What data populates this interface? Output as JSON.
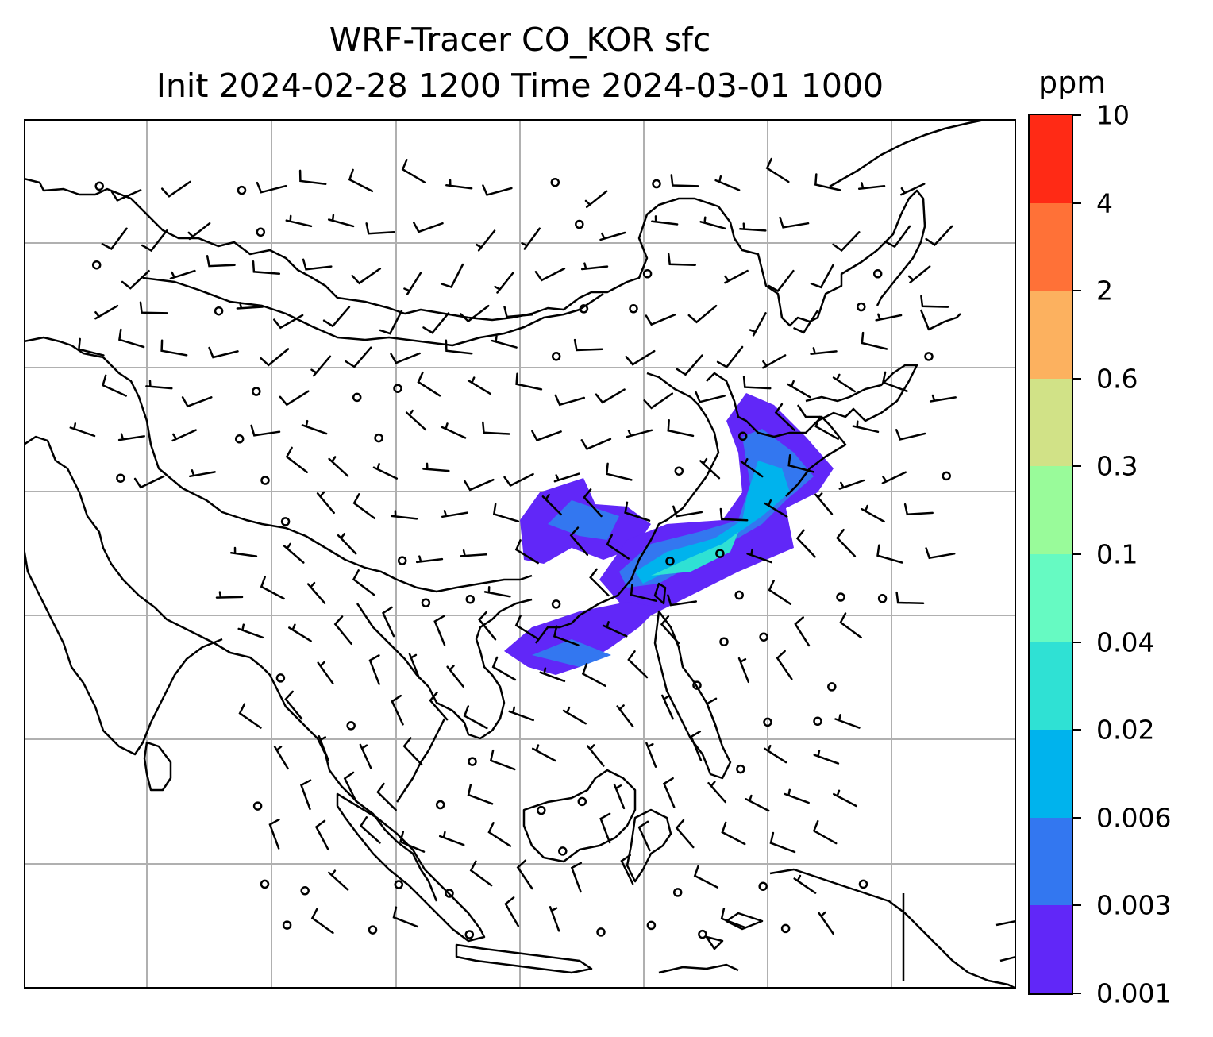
{
  "title": {
    "line1": "WRF-Tracer CO_KOR sfc",
    "line2": "Init 2024-02-28 1200 Time 2024-03-01 1000"
  },
  "colorbar": {
    "units": "ppm",
    "levels": [
      "0.001",
      "0.003",
      "0.006",
      "0.02",
      "0.04",
      "0.1",
      "0.3",
      "0.6",
      "2",
      "4",
      "10"
    ],
    "colors": [
      "#6127f8",
      "#3377f0",
      "#00b3ed",
      "#2fe1d4",
      "#66fac2",
      "#99fb9a",
      "#d1e287",
      "#fcb15f",
      "#ff7137",
      "#ff2a15"
    ]
  },
  "map": {
    "fields": [
      "CO_KOR tracer concentration",
      "surface wind barbs"
    ],
    "gridlines": true,
    "coastline_color": "#000000"
  }
}
